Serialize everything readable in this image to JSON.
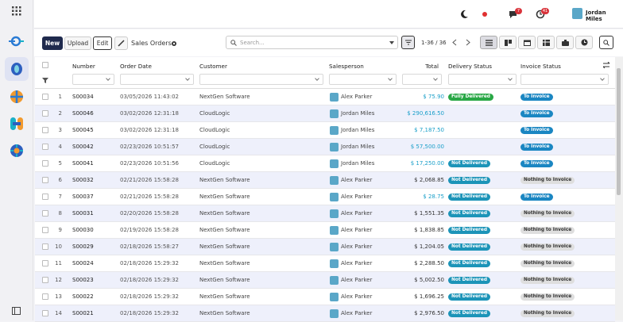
{
  "topbar": {
    "user": "Jordan Miles",
    "chat_badge": "7",
    "activity_badge": "41"
  },
  "control_panel": {
    "new_button": "New",
    "upload_button": "Upload",
    "edit_button": "Edit",
    "breadcrumb": "Sales Orders",
    "search_placeholder": "Search...",
    "pager": "1-36 / 36"
  },
  "table": {
    "headers": [
      "Number",
      "Order Date",
      "Customer",
      "Salesperson",
      "Total",
      "Delivery Status",
      "Invoice Status"
    ],
    "rows": [
      {
        "index": 1,
        "number": "S00034",
        "date": "03/05/2026 11:43:02",
        "customer": "NextGen Software",
        "salesperson": "Alex Parker",
        "total": "$ 75.90",
        "total_color": "#1a9fc9",
        "delivery": "Fully Delivered",
        "invoice": "To Invoice"
      },
      {
        "index": 2,
        "number": "S00046",
        "date": "03/02/2026 12:31:18",
        "customer": "CloudLogic",
        "salesperson": "Jordan Miles",
        "total": "$ 290,616.50",
        "total_color": "#1a9fc9",
        "delivery": null,
        "invoice": "To Invoice"
      },
      {
        "index": 3,
        "number": "S00045",
        "date": "03/02/2026 12:31:18",
        "customer": "CloudLogic",
        "salesperson": "Jordan Miles",
        "total": "$ 7,187.50",
        "total_color": "#1a9fc9",
        "delivery": null,
        "invoice": "To Invoice"
      },
      {
        "index": 4,
        "number": "S00042",
        "date": "02/23/2026 10:51:57",
        "customer": "CloudLogic",
        "salesperson": "Jordan Miles",
        "total": "$ 57,500.00",
        "total_color": "#1a9fc9",
        "delivery": null,
        "invoice": "To Invoice"
      },
      {
        "index": 5,
        "number": "S00041",
        "date": "02/23/2026 10:51:56",
        "customer": "CloudLogic",
        "salesperson": "Jordan Miles",
        "total": "$ 17,250.00",
        "total_color": "#1a9fc9",
        "delivery": "Not Delivered",
        "invoice": "To Invoice"
      },
      {
        "index": 6,
        "number": "S00032",
        "date": "02/21/2026 15:58:28",
        "customer": "NextGen Software",
        "salesperson": "Alex Parker",
        "total": "$ 2,068.85",
        "total_color": "#333333",
        "delivery": "Not Delivered",
        "invoice": "Nothing to Invoice"
      },
      {
        "index": 7,
        "number": "S00037",
        "date": "02/21/2026 15:58:28",
        "customer": "NextGen Software",
        "salesperson": "Alex Parker",
        "total": "$ 28.75",
        "total_color": "#1a9fc9",
        "delivery": "Not Delivered",
        "invoice": "To Invoice"
      },
      {
        "index": 8,
        "number": "S00031",
        "date": "02/20/2026 15:58:28",
        "customer": "NextGen Software",
        "salesperson": "Alex Parker",
        "total": "$ 1,551.35",
        "total_color": "#333333",
        "delivery": "Not Delivered",
        "invoice": "Nothing to Invoice"
      },
      {
        "index": 9,
        "number": "S00030",
        "date": "02/19/2026 15:58:28",
        "customer": "NextGen Software",
        "salesperson": "Alex Parker",
        "total": "$ 1,838.85",
        "total_color": "#333333",
        "delivery": "Not Delivered",
        "invoice": "Nothing to Invoice"
      },
      {
        "index": 10,
        "number": "S00029",
        "date": "02/18/2026 15:58:27",
        "customer": "NextGen Software",
        "salesperson": "Alex Parker",
        "total": "$ 1,204.05",
        "total_color": "#333333",
        "delivery": "Not Delivered",
        "invoice": "Nothing to Invoice"
      },
      {
        "index": 11,
        "number": "S00024",
        "date": "02/18/2026 15:29:32",
        "customer": "NextGen Software",
        "salesperson": "Alex Parker",
        "total": "$ 2,288.50",
        "total_color": "#333333",
        "delivery": "Not Delivered",
        "invoice": "Nothing to Invoice"
      },
      {
        "index": 12,
        "number": "S00023",
        "date": "02/18/2026 15:29:32",
        "customer": "NextGen Software",
        "salesperson": "Alex Parker",
        "total": "$ 5,002.50",
        "total_color": "#333333",
        "delivery": "Not Delivered",
        "invoice": "Nothing to Invoice"
      },
      {
        "index": 13,
        "number": "S00022",
        "date": "02/18/2026 15:29:32",
        "customer": "NextGen Software",
        "salesperson": "Alex Parker",
        "total": "$ 1,696.25",
        "total_color": "#333333",
        "delivery": "Not Delivered",
        "invoice": "Nothing to Invoice"
      },
      {
        "index": 14,
        "number": "S00021",
        "date": "02/18/2026 15:29:32",
        "customer": "NextGen Software",
        "salesperson": "Alex Parker",
        "total": "$ 2,976.50",
        "total_color": "#333333",
        "delivery": "Not Delivered",
        "invoice": "Nothing to Invoice"
      }
    ]
  }
}
